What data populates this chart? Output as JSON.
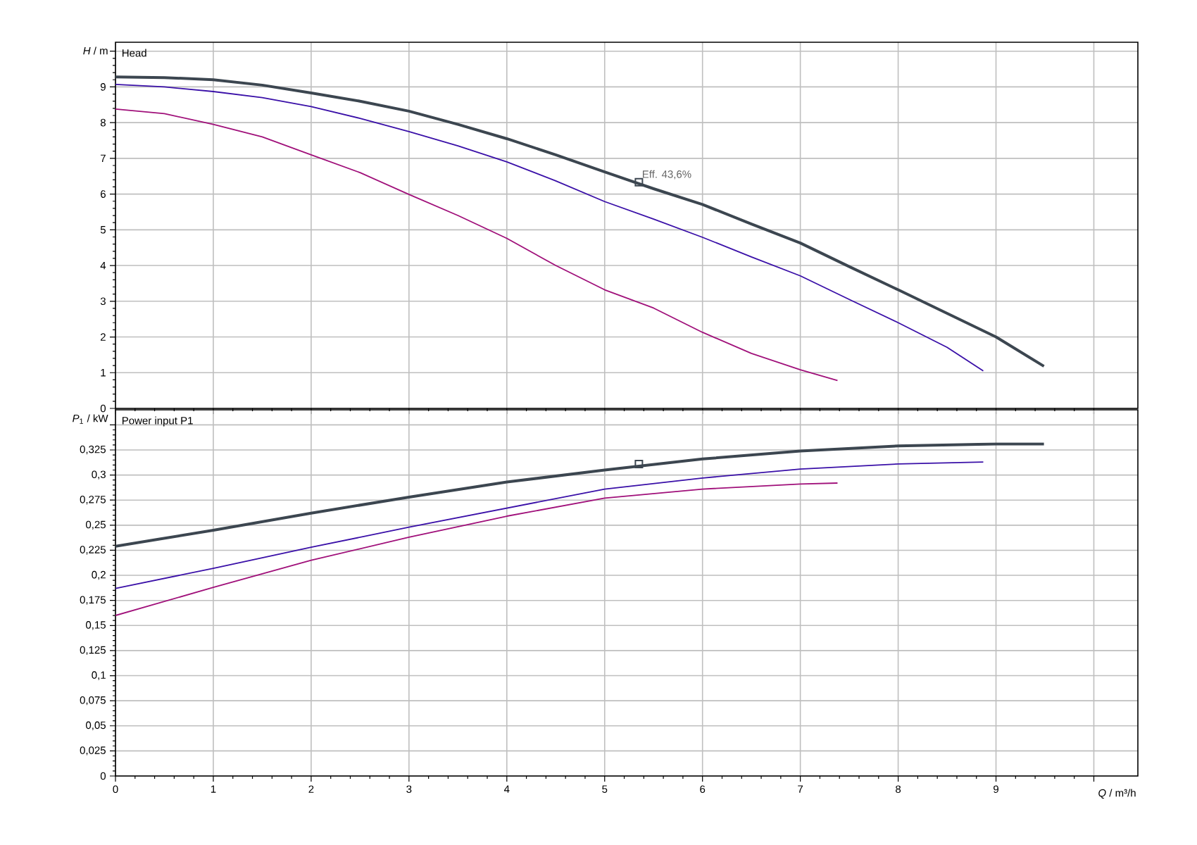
{
  "chart_data": [
    {
      "type": "line",
      "title": "Head",
      "ylabel": "*H* / m",
      "grid": true,
      "tick_labels": "y",
      "xlim": [
        0,
        10.45
      ],
      "xticks": [
        0,
        1,
        2,
        3,
        4,
        5,
        6,
        7,
        8,
        9,
        10
      ],
      "ylim": [
        0,
        10.25
      ],
      "yticks": [
        0,
        1,
        2,
        3,
        4,
        5,
        6,
        7,
        8,
        9,
        {
          "value": 10,
          "label": null
        }
      ],
      "annotations": [
        {
          "text": "Eff.  43,6%",
          "x": 5.35,
          "y": 6.33
        }
      ],
      "series": [
        {
          "color": "#3c4650",
          "x": [
            0,
            0.5,
            1,
            1.5,
            2,
            2.5,
            3,
            3.5,
            4,
            4.5,
            5,
            5.5,
            6,
            6.5,
            7,
            7.5,
            8,
            8.5,
            9,
            9.49
          ],
          "values": [
            9.28,
            9.26,
            9.2,
            9.05,
            8.83,
            8.6,
            8.32,
            7.95,
            7.55,
            7.1,
            6.62,
            6.15,
            5.71,
            5.16,
            4.63,
            3.97,
            3.32,
            2.66,
            2.0,
            1.18
          ]
        },
        {
          "color": "#3a10a8",
          "x": [
            0,
            0.5,
            1,
            1.5,
            2,
            2.5,
            3,
            3.5,
            4,
            4.5,
            5,
            5.5,
            6,
            6.5,
            7,
            7.5,
            8,
            8.5,
            8.87
          ],
          "values": [
            9.07,
            9.0,
            8.87,
            8.7,
            8.45,
            8.12,
            7.75,
            7.35,
            6.9,
            6.37,
            5.79,
            5.3,
            4.79,
            4.24,
            3.71,
            3.05,
            2.4,
            1.71,
            1.05
          ]
        },
        {
          "color": "#a0107a",
          "x": [
            0,
            0.5,
            1,
            1.5,
            2,
            2.5,
            3,
            3.5,
            4,
            4.5,
            5,
            5.5,
            6,
            6.5,
            7,
            7.38
          ],
          "values": [
            8.38,
            8.25,
            7.95,
            7.6,
            7.1,
            6.6,
            5.99,
            5.4,
            4.76,
            4.0,
            3.32,
            2.81,
            2.13,
            1.54,
            1.08,
            0.78
          ]
        },
        {
          "type": "scatter",
          "marker": "square",
          "color": "#3c4650",
          "x": [
            5.35
          ],
          "values": [
            6.33
          ]
        }
      ]
    },
    {
      "type": "line",
      "title": "Power input P1",
      "ylabel": "*P*$_{1}$ / kW",
      "xlabel": "*Q* / m³/h",
      "grid": true,
      "xlim": [
        0,
        10.45
      ],
      "xticks": [
        0,
        1,
        2,
        3,
        4,
        5,
        6,
        7,
        8,
        9,
        {
          "value": 10,
          "label": null
        }
      ],
      "ylim": [
        0,
        0.365
      ],
      "yticks": [
        0,
        {
          "value": 0.025,
          "label": "0,025"
        },
        {
          "value": 0.05,
          "label": "0,05"
        },
        {
          "value": 0.075,
          "label": "0,075"
        },
        {
          "value": 0.1,
          "label": "0,1"
        },
        {
          "value": 0.125,
          "label": "0,125"
        },
        {
          "value": 0.15,
          "label": "0,15"
        },
        {
          "value": 0.175,
          "label": "0,175"
        },
        {
          "value": 0.2,
          "label": "0,2"
        },
        {
          "value": 0.225,
          "label": "0,225"
        },
        {
          "value": 0.25,
          "label": "0,25"
        },
        {
          "value": 0.275,
          "label": "0,275"
        },
        {
          "value": 0.3,
          "label": "0,3"
        },
        {
          "value": 0.325,
          "label": "0,325"
        },
        {
          "value": 0.35,
          "label": null
        }
      ],
      "series": [
        {
          "color": "#3c4650",
          "x": [
            0,
            1,
            2,
            3,
            4,
            5,
            6,
            7,
            8,
            9,
            9.49
          ],
          "values": [
            0.229,
            0.245,
            0.262,
            0.278,
            0.293,
            0.305,
            0.316,
            0.324,
            0.329,
            0.331,
            0.331
          ]
        },
        {
          "color": "#3a10a8",
          "x": [
            0,
            1,
            2,
            3,
            4,
            5,
            6,
            7,
            8,
            8.87
          ],
          "values": [
            0.187,
            0.207,
            0.228,
            0.248,
            0.267,
            0.286,
            0.297,
            0.306,
            0.311,
            0.313
          ]
        },
        {
          "color": "#a0107a",
          "x": [
            0,
            1,
            2,
            3,
            4,
            5,
            6,
            7,
            7.38
          ],
          "values": [
            0.16,
            0.188,
            0.215,
            0.238,
            0.259,
            0.277,
            0.286,
            0.291,
            0.292
          ]
        },
        {
          "type": "scatter",
          "marker": "square",
          "color": "#3c4650",
          "x": [
            5.35
          ],
          "values": [
            0.311
          ]
        }
      ]
    }
  ]
}
